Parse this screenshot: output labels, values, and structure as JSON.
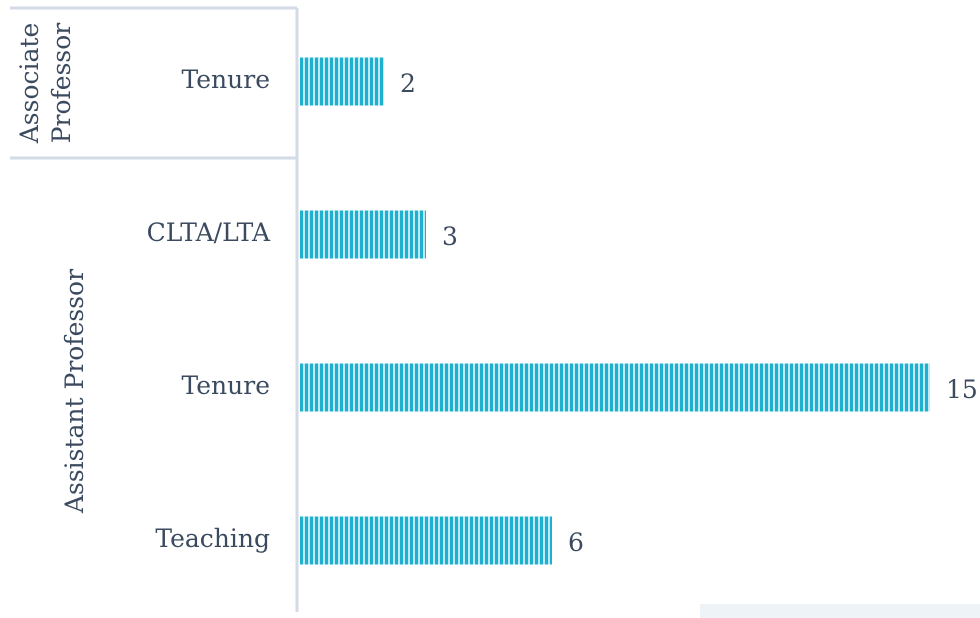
{
  "chart_data": {
    "type": "bar",
    "groups": [
      {
        "name": "Associate Professor",
        "categories": [
          "Tenure"
        ],
        "values": [
          2
        ]
      },
      {
        "name": "Assistant Professor",
        "categories": [
          "CLTA/LTA",
          "Tenure",
          "Teaching"
        ],
        "values": [
          3,
          15,
          6
        ]
      }
    ],
    "color": "#1fb0cf"
  }
}
